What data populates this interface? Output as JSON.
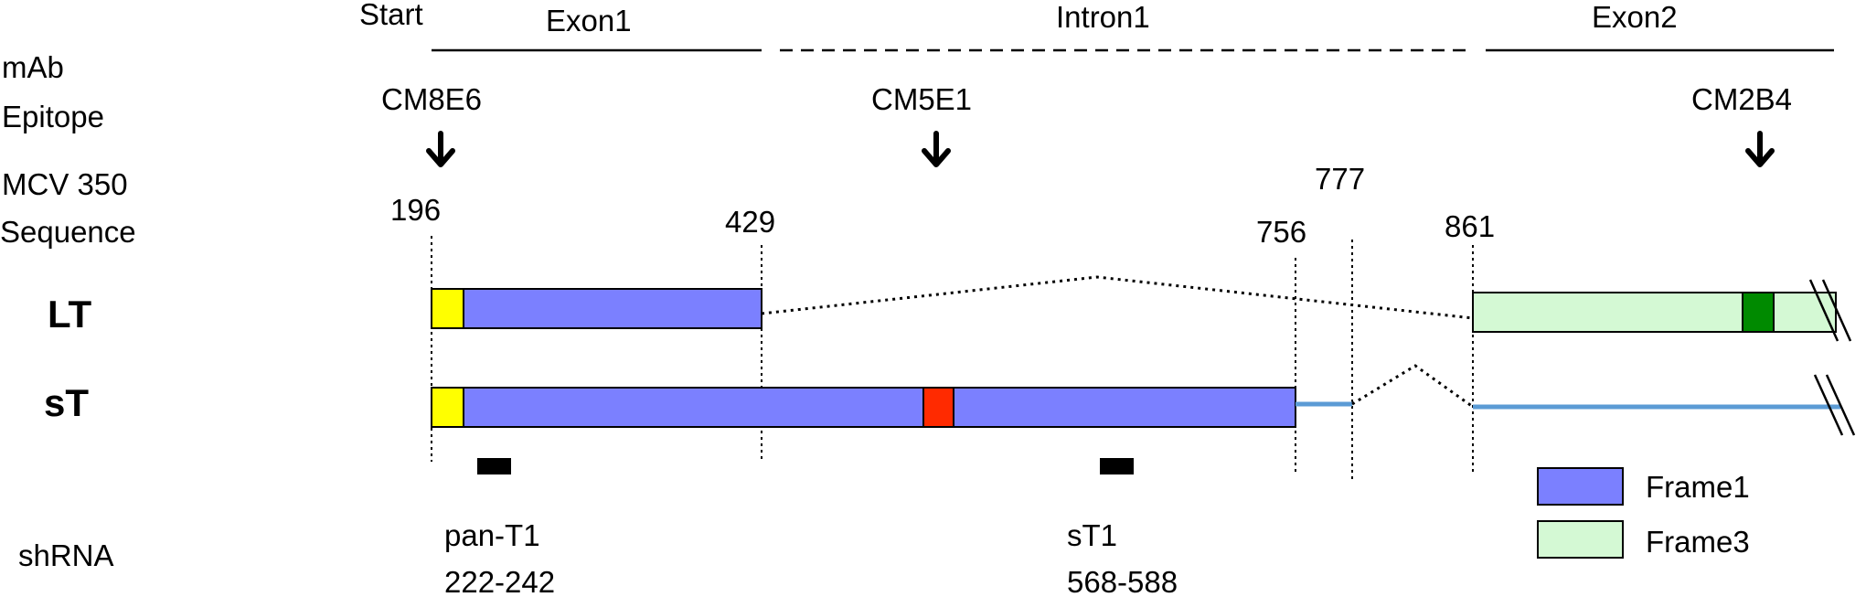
{
  "gene_regions": {
    "start": "Start",
    "exon1": "Exon1",
    "intron1": "Intron1",
    "exon2": "Exon2"
  },
  "row_labels": {
    "mab_line1": "mAb",
    "mab_line2": "Epitope",
    "seq_line1": "MCV 350",
    "seq_line2": "Sequence",
    "lt": "LT",
    "st": "sT",
    "shrna": "shRNA"
  },
  "epitopes": [
    "CM8E6",
    "CM5E1",
    "CM2B4"
  ],
  "positions": [
    "196",
    "429",
    "756",
    "777",
    "861"
  ],
  "shrnas": [
    {
      "name": "pan-T1",
      "range": "222-242"
    },
    {
      "name": "sT1",
      "range": "568-588"
    }
  ],
  "legend": [
    {
      "label": "Frame1",
      "color": "#7b80ff"
    },
    {
      "label": "Frame3",
      "color": "#d4f9d4"
    }
  ],
  "colors": {
    "frame1": "#7b80ff",
    "frame3": "#d4f9d4",
    "epitope_box_yellow": "#ffff00",
    "epitope_box_red": "#ff2a00",
    "epitope_box_green": "#008a00",
    "utr_line": "#5b9bd5"
  }
}
